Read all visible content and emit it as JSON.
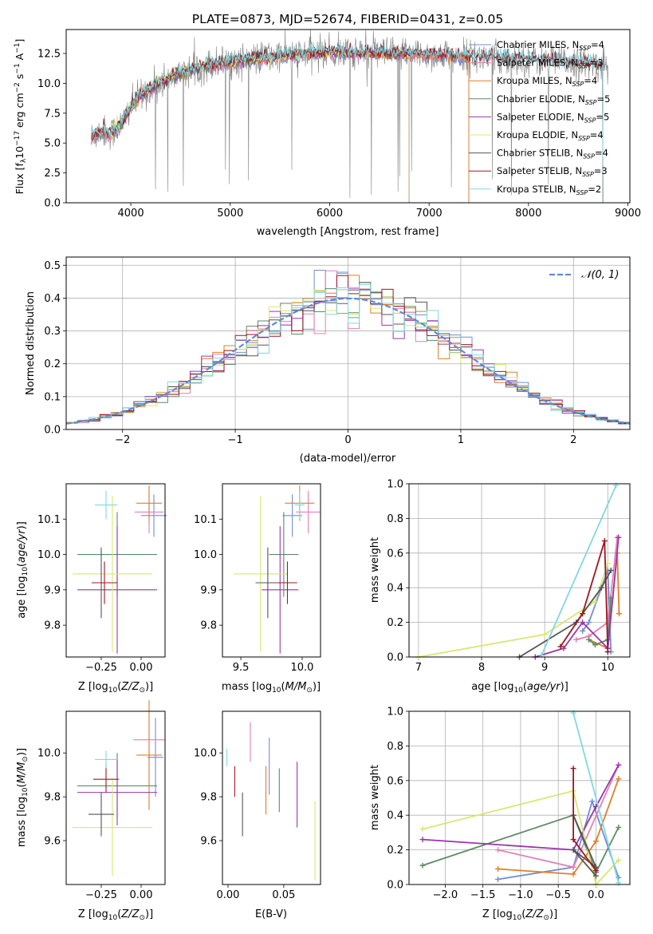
{
  "title": "PLATE=0873, MJD=52674, FIBERID=0431, z=0.05",
  "colors": {
    "Chabrier MILES": "#6f8fd8",
    "Salpeter MILES": "#e47fb5",
    "Kroupa MILES": "#dd7f2a",
    "Chabrier ELODIE": "#5e8a64",
    "Salpeter ELODIE": "#9a35ad",
    "Kroupa ELODIE": "#d8e870",
    "Chabrier STELIB": "#555555",
    "Salpeter STELIB": "#a01520",
    "Kroupa STELIB": "#80d8e0",
    "data": "#808080",
    "normal": "#5f8bd6",
    "grid": "#b0b0b0"
  },
  "chart_data": [
    {
      "id": "spectrum",
      "type": "line",
      "title": "PLATE=0873, MJD=52674, FIBERID=0431, z=0.05",
      "xlabel": "wavelength [Angstrom, rest frame]",
      "ylabel": "Flux [f_λ 10^-17 erg cm^-2 s^-1 A^-1]",
      "xlim": [
        3350,
        9020
      ],
      "ylim": [
        0,
        14.5
      ],
      "xticks": [
        4000,
        5000,
        6000,
        7000,
        8000,
        9000
      ],
      "yticks": [
        0.0,
        2.5,
        5.0,
        7.5,
        10.0,
        12.5
      ],
      "grid": false,
      "legend_position": "top-right",
      "legend": [
        {
          "label": "Chabrier MILES, N",
          "n": "4"
        },
        {
          "label": "Salpeter MILES, N",
          "n": "3"
        },
        {
          "label": "Kroupa MILES, N",
          "n": "4"
        },
        {
          "label": "Chabrier ELODIE, N",
          "n": "5"
        },
        {
          "label": "Salpeter ELODIE, N",
          "n": "5"
        },
        {
          "label": "Kroupa ELODIE, N",
          "n": "4"
        },
        {
          "label": "Chabrier STELIB, N",
          "n": "4"
        },
        {
          "label": "Salpeter STELIB, N",
          "n": "3"
        },
        {
          "label": "Kroupa STELIB, N",
          "n": "2"
        }
      ],
      "continuum": {
        "wavelength": [
          3600,
          3700,
          3800,
          3900,
          4000,
          4100,
          4200,
          4400,
          4600,
          4800,
          5000,
          5200,
          5500,
          6000,
          6500,
          7000,
          7400,
          8000,
          8500,
          8800
        ],
        "flux": [
          5.5,
          6.0,
          5.8,
          6.5,
          8.0,
          9.0,
          9.6,
          10.5,
          11.1,
          11.6,
          11.8,
          12.0,
          12.3,
          12.6,
          12.5,
          12.4,
          12.2,
          12.0,
          11.7,
          11.5
        ]
      },
      "data_range": [
        3600,
        8800
      ],
      "model_ranges": {
        "MILES": [
          3600,
          7400
        ],
        "ELODIE": [
          3800,
          6800
        ],
        "STELIB": [
          3600,
          8750
        ]
      }
    },
    {
      "id": "residuals",
      "type": "histogram",
      "xlabel": "(data-model)/error",
      "ylabel": "Normed distribution",
      "xlim": [
        -2.5,
        2.5
      ],
      "ylim": [
        0,
        0.525
      ],
      "xticks": [
        -2,
        -1,
        0,
        1,
        2
      ],
      "yticks": [
        0.0,
        0.1,
        0.2,
        0.3,
        0.4,
        0.5
      ],
      "grid": true,
      "legend_position": "top-right",
      "legend_label": "𝒩(0, 1)",
      "bin_width": 0.1,
      "bin_start": -2.5
    },
    {
      "id": "age_vs_Z",
      "type": "errorbar",
      "xlabel": "Z [log10(Z/Z⊙)]",
      "ylabel": "age  [log10(age/yr)]",
      "xlim": [
        -0.47,
        0.15
      ],
      "ylim": [
        9.71,
        10.2
      ],
      "xticks": [
        "-0.25",
        "0.00"
      ],
      "yticks": [
        "9.8",
        "9.9",
        "10.0",
        "10.1"
      ],
      "points": [
        {
          "model": "Chabrier MILES",
          "x": 0.08,
          "xerr": 0.08,
          "y": 10.11,
          "yerr": 0.06
        },
        {
          "model": "Salpeter MILES",
          "x": 0.05,
          "xerr": 0.09,
          "y": 10.12,
          "yerr": 0.06
        },
        {
          "model": "Kroupa MILES",
          "x": 0.05,
          "xerr": 0.08,
          "y": 10.145,
          "yerr": 0.05
        },
        {
          "model": "Chabrier ELODIE",
          "x": -0.15,
          "xerr": 0.25,
          "y": 10.0,
          "yerr": 0.12
        },
        {
          "model": "Salpeter ELODIE",
          "x": -0.15,
          "xerr": 0.25,
          "y": 9.9,
          "yerr": 0.18
        },
        {
          "model": "Kroupa ELODIE",
          "x": -0.18,
          "xerr": 0.25,
          "y": 9.945,
          "yerr": 0.22
        },
        {
          "model": "Chabrier STELIB",
          "x": -0.25,
          "xerr": 0.06,
          "y": 9.92,
          "yerr": 0.1
        },
        {
          "model": "Salpeter STELIB",
          "x": -0.23,
          "xerr": 0.08,
          "y": 9.92,
          "yerr": 0.06
        },
        {
          "model": "Kroupa STELIB",
          "x": -0.22,
          "xerr": 0.07,
          "y": 10.14,
          "yerr": 0.04
        }
      ]
    },
    {
      "id": "age_vs_mass",
      "type": "errorbar",
      "xlabel": "mass [log10(M/M⊙)]",
      "xlim": [
        9.35,
        10.15
      ],
      "ylim": [
        9.71,
        10.2
      ],
      "xticks": [
        "9.5",
        "10.0"
      ],
      "yticks": [
        "9.8",
        "9.9",
        "10.0",
        "10.1"
      ],
      "points": [
        {
          "model": "Chabrier MILES",
          "x": 9.92,
          "xerr": 0.08,
          "y": 10.11,
          "yerr": 0.06
        },
        {
          "model": "Salpeter MILES",
          "x": 10.05,
          "xerr": 0.1,
          "y": 10.12,
          "yerr": 0.06
        },
        {
          "model": "Kroupa MILES",
          "x": 9.98,
          "xerr": 0.12,
          "y": 10.145,
          "yerr": 0.05
        },
        {
          "model": "Chabrier ELODIE",
          "x": 9.85,
          "xerr": 0.12,
          "y": 10.0,
          "yerr": 0.12
        },
        {
          "model": "Salpeter ELODIE",
          "x": 9.82,
          "xerr": 0.15,
          "y": 9.9,
          "yerr": 0.18
        },
        {
          "model": "Kroupa ELODIE",
          "x": 9.66,
          "xerr": 0.22,
          "y": 9.945,
          "yerr": 0.22
        },
        {
          "model": "Chabrier STELIB",
          "x": 9.72,
          "xerr": 0.1,
          "y": 9.92,
          "yerr": 0.1
        },
        {
          "model": "Salpeter STELIB",
          "x": 9.88,
          "xerr": 0.08,
          "y": 9.92,
          "yerr": 0.06
        },
        {
          "model": "Kroupa STELIB",
          "x": 9.98,
          "xerr": 0.04,
          "y": 10.14,
          "yerr": 0.04
        }
      ]
    },
    {
      "id": "weight_vs_age",
      "type": "line",
      "xlabel": "age  [log10(age/yr)]",
      "ylabel": "mass weight",
      "xlim": [
        6.85,
        10.35
      ],
      "ylim": [
        0,
        1.0
      ],
      "xticks": [
        7,
        8,
        9,
        10
      ],
      "yticks": [
        "0.0",
        "0.2",
        "0.4",
        "0.6",
        "0.8",
        "1.0"
      ],
      "grid": true,
      "series": [
        {
          "model": "Chabrier MILES",
          "x": [
            9.6,
            9.7,
            10.0,
            10.05
          ],
          "y": [
            0.15,
            0.2,
            0.5,
            0.03
          ]
        },
        {
          "model": "Salpeter MILES",
          "x": [
            9.5,
            9.7,
            10.0,
            10.15
          ],
          "y": [
            0.1,
            0.12,
            0.2,
            0.69
          ]
        },
        {
          "model": "Kroupa MILES",
          "x": [
            9.7,
            10.0,
            10.15,
            10.18
          ],
          "y": [
            0.1,
            0.05,
            0.6,
            0.25
          ]
        },
        {
          "model": "Chabrier ELODIE",
          "x": [
            9.7,
            9.8,
            10.0,
            10.05
          ],
          "y": [
            0.1,
            0.07,
            0.1,
            0.34
          ]
        },
        {
          "model": "Salpeter ELODIE",
          "x": [
            8.85,
            9.3,
            9.6,
            10.0,
            10.17
          ],
          "y": [
            0.0,
            0.05,
            0.2,
            0.05,
            0.69
          ]
        },
        {
          "model": "Kroupa ELODIE",
          "x": [
            7.0,
            9.0,
            9.8,
            10.0
          ],
          "y": [
            0.0,
            0.13,
            0.32,
            0.54
          ]
        },
        {
          "model": "Chabrier STELIB",
          "x": [
            8.6,
            9.5,
            9.9,
            10.05
          ],
          "y": [
            0.0,
            0.2,
            0.4,
            0.5
          ]
        },
        {
          "model": "Salpeter STELIB",
          "x": [
            9.25,
            9.6,
            9.95,
            10.0
          ],
          "y": [
            0.06,
            0.25,
            0.67,
            0.03
          ]
        },
        {
          "model": "Kroupa STELIB",
          "x": [
            8.95,
            10.13
          ],
          "y": [
            0.01,
            0.99
          ]
        }
      ]
    },
    {
      "id": "mass_vs_Z",
      "type": "errorbar",
      "xlabel": "Z [log10(Z/Z⊙)]",
      "ylabel": "mass [log10(M/M⊙)]",
      "xlim": [
        -0.47,
        0.15
      ],
      "ylim": [
        9.4,
        10.19
      ],
      "xticks": [
        "-0.25",
        "0.00"
      ],
      "yticks": [
        "9.6",
        "9.8",
        "10.0"
      ],
      "points": [
        {
          "model": "Chabrier MILES",
          "x": 0.09,
          "xerr": 0.05,
          "y": 9.98,
          "yerr": 0.18
        },
        {
          "model": "Salpeter MILES",
          "x": 0.05,
          "xerr": 0.1,
          "y": 10.06,
          "yerr": 0.09
        },
        {
          "model": "Kroupa MILES",
          "x": 0.05,
          "xerr": 0.08,
          "y": 9.99,
          "yerr": 0.25
        },
        {
          "model": "Chabrier ELODIE",
          "x": -0.15,
          "xerr": 0.25,
          "y": 9.85,
          "yerr": 0.15
        },
        {
          "model": "Salpeter ELODIE",
          "x": -0.15,
          "xerr": 0.25,
          "y": 9.82,
          "yerr": 0.15
        },
        {
          "model": "Kroupa ELODIE",
          "x": -0.18,
          "xerr": 0.25,
          "y": 9.66,
          "yerr": 0.22
        },
        {
          "model": "Chabrier STELIB",
          "x": -0.25,
          "xerr": 0.08,
          "y": 9.72,
          "yerr": 0.1
        },
        {
          "model": "Salpeter STELIB",
          "x": -0.22,
          "xerr": 0.08,
          "y": 9.88,
          "yerr": 0.06
        },
        {
          "model": "Kroupa STELIB",
          "x": -0.22,
          "xerr": 0.07,
          "y": 9.97,
          "yerr": 0.04
        }
      ]
    },
    {
      "id": "mass_vs_ebv",
      "type": "errorbar",
      "xlabel": "E(B-V)",
      "xlim": [
        -0.005,
        0.083
      ],
      "ylim": [
        9.4,
        10.19
      ],
      "xticks": [
        "0.00",
        "0.05"
      ],
      "yticks": [
        "9.6",
        "9.8",
        "10.0"
      ],
      "points": [
        {
          "model": "Chabrier MILES",
          "x": 0.037,
          "xerr": 0,
          "y": 9.94,
          "yerr": 0.13
        },
        {
          "model": "Salpeter MILES",
          "x": 0.02,
          "xerr": 0,
          "y": 10.05,
          "yerr": 0.09
        },
        {
          "model": "Kroupa MILES",
          "x": 0.034,
          "xerr": 0,
          "y": 9.83,
          "yerr": 0.11
        },
        {
          "model": "Chabrier ELODIE",
          "x": 0.046,
          "xerr": 0,
          "y": 9.83,
          "yerr": 0.1
        },
        {
          "model": "Salpeter ELODIE",
          "x": 0.062,
          "xerr": 0,
          "y": 9.81,
          "yerr": 0.15
        },
        {
          "model": "Kroupa ELODIE",
          "x": 0.078,
          "xerr": 0,
          "y": 9.6,
          "yerr": 0.18
        },
        {
          "model": "Chabrier STELIB",
          "x": 0.013,
          "xerr": 0,
          "y": 9.72,
          "yerr": 0.1
        },
        {
          "model": "Salpeter STELIB",
          "x": 0.006,
          "xerr": 0,
          "y": 9.87,
          "yerr": 0.07
        },
        {
          "model": "Kroupa STELIB",
          "x": -0.001,
          "xerr": 0,
          "y": 9.98,
          "yerr": 0.04
        }
      ]
    },
    {
      "id": "weight_vs_Z",
      "type": "line",
      "xlabel": "Z [log10(Z/Z⊙)]",
      "ylabel": "mass weight",
      "xlim": [
        -2.48,
        0.45
      ],
      "ylim": [
        0,
        1.0
      ],
      "xticks": [
        "−2.0",
        "−1.5",
        "−1.0",
        "−0.5",
        "0.0"
      ],
      "yticks": [
        "0.0",
        "0.2",
        "0.4",
        "0.6",
        "0.8",
        "1.0"
      ],
      "grid": true,
      "series": [
        {
          "model": "Chabrier MILES",
          "x": [
            -1.3,
            -0.3,
            -0.05,
            0.3
          ],
          "y": [
            0.03,
            0.1,
            0.48,
            0.04
          ]
        },
        {
          "model": "Salpeter MILES",
          "x": [
            -1.3,
            -0.3,
            0.3
          ],
          "y": [
            0.2,
            0.1,
            0.69
          ]
        },
        {
          "model": "Kroupa MILES",
          "x": [
            -1.3,
            -0.3,
            0.0,
            0.3
          ],
          "y": [
            0.09,
            0.06,
            0.25,
            0.61
          ]
        },
        {
          "model": "Chabrier ELODIE",
          "x": [
            -2.3,
            -0.3,
            0.0,
            0.3
          ],
          "y": [
            0.11,
            0.4,
            0.07,
            0.33
          ]
        },
        {
          "model": "Salpeter ELODIE",
          "x": [
            -2.3,
            -0.3,
            0.0,
            0.3
          ],
          "y": [
            0.26,
            0.2,
            0.45,
            0.69
          ]
        },
        {
          "model": "Kroupa ELODIE",
          "x": [
            -2.3,
            -0.3,
            0.0,
            0.3
          ],
          "y": [
            0.32,
            0.54,
            0.0,
            0.14
          ]
        },
        {
          "model": "Chabrier STELIB",
          "x": [
            -0.3,
            0.0,
            -0.3,
            0.0
          ],
          "y": [
            0.4,
            0.1,
            0.2,
            0.05
          ]
        },
        {
          "model": "Salpeter STELIB",
          "x": [
            -0.3,
            -0.3,
            0.0
          ],
          "y": [
            0.67,
            0.26,
            0.08
          ]
        },
        {
          "model": "Kroupa STELIB",
          "x": [
            -0.3,
            0.3
          ],
          "y": [
            0.99,
            0.01
          ]
        }
      ]
    }
  ]
}
